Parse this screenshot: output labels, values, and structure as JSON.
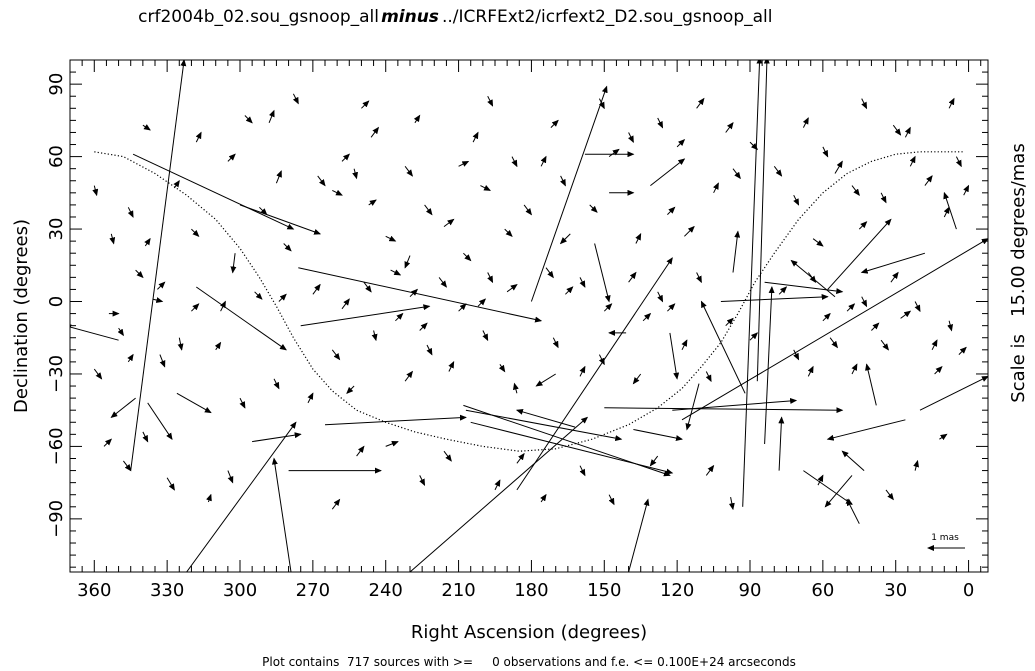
{
  "chart_data": {
    "type": "scatter",
    "title": {
      "left": "crf2004b_02.sou_gsnoop_all",
      "middle": "minus",
      "right": "../ICRFExt2/icrfext2_D2.sou_gsnoop_all"
    },
    "xlabel": "Right Ascension (degrees)",
    "ylabel": "Declination (degrees)",
    "right_label": "Scale is   15.00 degrees/mas",
    "footer": "Plot contains  717 sources with >=     0 observations and f.e. <= 0.100E+24 arcseconds",
    "scale_bar_label": "1 mas",
    "xlim": [
      370,
      -8
    ],
    "ylim": [
      -112,
      100
    ],
    "x_ticks": [
      360,
      330,
      300,
      270,
      240,
      210,
      180,
      150,
      120,
      90,
      60,
      30,
      0
    ],
    "y_ticks": [
      90,
      60,
      30,
      0,
      -30,
      -60,
      -90
    ],
    "x_tick_labels": [
      "360",
      "330",
      "300",
      "270",
      "240",
      "210",
      "180",
      "150",
      "120",
      "90",
      "60",
      "30",
      "0"
    ],
    "y_tick_labels": [
      "90",
      "60",
      "30",
      "0",
      "−30",
      "−60",
      "−90"
    ],
    "galactic_plane": {
      "ra": [
        360,
        348,
        335,
        322,
        310,
        300,
        292,
        285,
        278,
        270,
        262,
        252,
        240,
        228,
        215,
        200,
        185,
        170,
        155,
        140,
        128,
        118,
        110,
        102,
        95,
        88,
        80,
        70,
        60,
        50,
        40,
        30,
        20,
        10,
        2
      ],
      "dec": [
        62,
        60,
        53,
        44,
        34,
        22,
        10,
        -2,
        -15,
        -28,
        -37,
        -45,
        -50,
        -54,
        -57,
        -60,
        -62,
        -61,
        -57,
        -51,
        -44,
        -36,
        -27,
        -17,
        -5,
        8,
        20,
        34,
        45,
        53,
        58,
        61,
        62,
        62,
        62
      ]
    },
    "long_arrows": [
      [
        345,
        -70,
        323,
        100
      ],
      [
        322,
        -112,
        277,
        -50
      ],
      [
        338,
        -42,
        328,
        -57
      ],
      [
        343,
        -40,
        353,
        -48
      ],
      [
        350,
        -16,
        372,
        -10
      ],
      [
        318,
        6,
        281,
        -20
      ],
      [
        326,
        -38,
        312,
        -46
      ],
      [
        344,
        61,
        278,
        30
      ],
      [
        300,
        40,
        267,
        28
      ],
      [
        302,
        20,
        303,
        12
      ],
      [
        276,
        14,
        176,
        -8
      ],
      [
        275,
        -10,
        222,
        -2
      ],
      [
        279,
        -112,
        286,
        -65
      ],
      [
        295,
        -58,
        275,
        -55
      ],
      [
        280,
        -70,
        242,
        -70
      ],
      [
        265,
        -51,
        207,
        -48
      ],
      [
        230,
        -112,
        157,
        -48
      ],
      [
        208,
        -43,
        123,
        -72
      ],
      [
        207,
        -45,
        143,
        -57
      ],
      [
        205,
        -50,
        122,
        -71
      ],
      [
        180,
        0,
        149,
        89
      ],
      [
        186,
        -78,
        122,
        18
      ],
      [
        162,
        -52,
        186,
        -45
      ],
      [
        140,
        -112,
        132,
        -82
      ],
      [
        141,
        -13,
        148,
        -13
      ],
      [
        123,
        -13,
        120,
        -32
      ],
      [
        158,
        61,
        138,
        61
      ],
      [
        148,
        45,
        138,
        45
      ],
      [
        131,
        48,
        117,
        59
      ],
      [
        97,
        12,
        95,
        29
      ],
      [
        93,
        -85,
        86,
        101
      ],
      [
        87,
        -33,
        83,
        101
      ],
      [
        84,
        -59,
        81,
        6
      ],
      [
        78,
        -70,
        77,
        -48
      ],
      [
        102,
        0,
        58,
        2
      ],
      [
        84,
        8,
        52,
        4
      ],
      [
        55,
        2,
        73,
        17
      ],
      [
        58,
        5,
        32,
        34
      ],
      [
        118,
        -49,
        -8,
        26
      ],
      [
        122,
        -45,
        71,
        -41
      ],
      [
        150,
        -44,
        52,
        -45
      ],
      [
        138,
        -53,
        118,
        -57
      ],
      [
        111,
        -34,
        116,
        -53
      ],
      [
        92,
        -38,
        110,
        0
      ],
      [
        68,
        -70,
        48,
        -84
      ],
      [
        43,
        -70,
        52,
        -62
      ],
      [
        38,
        -43,
        42,
        -26
      ],
      [
        26,
        -49,
        58,
        -57
      ],
      [
        45,
        -92,
        50,
        -82
      ],
      [
        20,
        -45,
        -8,
        -31
      ],
      [
        18,
        20,
        44,
        12
      ],
      [
        5,
        30,
        10,
        45
      ],
      [
        48,
        -72,
        59,
        -85
      ],
      [
        170,
        -30,
        178,
        -35
      ],
      [
        154,
        24,
        148,
        0
      ]
    ],
    "short_arrows": [
      [
        360,
        48,
        359,
        44
      ],
      [
        353,
        28,
        352,
        24
      ],
      [
        346,
        39,
        344,
        35
      ],
      [
        343,
        13,
        340,
        10
      ],
      [
        339,
        23,
        337,
        26
      ],
      [
        334,
        5,
        331,
        8
      ],
      [
        327,
        47,
        325,
        50
      ],
      [
        354,
        -5,
        350,
        -5
      ],
      [
        350,
        -11,
        348,
        -14
      ],
      [
        346,
        -25,
        344,
        -22
      ],
      [
        336,
        1,
        332,
        0
      ],
      [
        333,
        -22,
        331,
        -27
      ],
      [
        325,
        -15,
        324,
        -20
      ],
      [
        320,
        30,
        317,
        27
      ],
      [
        310,
        -20,
        308,
        -17
      ],
      [
        305,
        -70,
        303,
        -75
      ],
      [
        330,
        -73,
        327,
        -78
      ],
      [
        313,
        -83,
        312,
        -80
      ],
      [
        285,
        49,
        283,
        54
      ],
      [
        288,
        74,
        286,
        79
      ],
      [
        268,
        52,
        265,
        48
      ],
      [
        262,
        46,
        258,
        44
      ],
      [
        253,
        55,
        252,
        51
      ],
      [
        247,
        40,
        244,
        42
      ],
      [
        240,
        27,
        236,
        25
      ],
      [
        230,
        19,
        232,
        14
      ],
      [
        224,
        40,
        221,
        36
      ],
      [
        216,
        31,
        212,
        34
      ],
      [
        210,
        56,
        206,
        58
      ],
      [
        201,
        48,
        197,
        46
      ],
      [
        191,
        30,
        188,
        27
      ],
      [
        183,
        40,
        180,
        36
      ],
      [
        176,
        56,
        174,
        60
      ],
      [
        164,
        28,
        168,
        24
      ],
      [
        156,
        40,
        153,
        37
      ],
      [
        148,
        60,
        144,
        63
      ],
      [
        137,
        24,
        135,
        28
      ],
      [
        124,
        36,
        121,
        39
      ],
      [
        117,
        27,
        113,
        31
      ],
      [
        105,
        45,
        103,
        49
      ],
      [
        97,
        55,
        94,
        51
      ],
      [
        72,
        44,
        70,
        40
      ],
      [
        64,
        26,
        60,
        23
      ],
      [
        55,
        53,
        52,
        58
      ],
      [
        45,
        30,
        42,
        33
      ],
      [
        36,
        45,
        34,
        41
      ],
      [
        31,
        73,
        28,
        69
      ],
      [
        18,
        48,
        15,
        52
      ],
      [
        10,
        35,
        8,
        39
      ],
      [
        5,
        60,
        3,
        56
      ],
      [
        262,
        -20,
        259,
        -24
      ],
      [
        253,
        -35,
        256,
        -38
      ],
      [
        245,
        -12,
        244,
        -16
      ],
      [
        232,
        -33,
        229,
        -29
      ],
      [
        223,
        -18,
        221,
        -22
      ],
      [
        214,
        -29,
        212,
        -25
      ],
      [
        200,
        -12,
        198,
        -16
      ],
      [
        193,
        -26,
        191,
        -29
      ],
      [
        186,
        -38,
        187,
        -34
      ],
      [
        171,
        -15,
        169,
        -19
      ],
      [
        160,
        -31,
        158,
        -27
      ],
      [
        152,
        -22,
        150,
        -26
      ],
      [
        135,
        -30,
        138,
        -34
      ],
      [
        118,
        -20,
        116,
        -16
      ],
      [
        108,
        -29,
        106,
        -33
      ],
      [
        72,
        -20,
        70,
        -24
      ],
      [
        66,
        -31,
        64,
        -27
      ],
      [
        57,
        -15,
        54,
        -19
      ],
      [
        48,
        -30,
        46,
        -26
      ],
      [
        36,
        -16,
        33,
        -20
      ],
      [
        28,
        -7,
        24,
        -4
      ],
      [
        15,
        -20,
        13,
        -16
      ],
      [
        8,
        -8,
        7,
        -12
      ],
      [
        262,
        -86,
        259,
        -82
      ],
      [
        252,
        -64,
        249,
        -60
      ],
      [
        240,
        -60,
        235,
        -58
      ],
      [
        226,
        -72,
        224,
        -76
      ],
      [
        216,
        -62,
        213,
        -66
      ],
      [
        195,
        -78,
        193,
        -74
      ],
      [
        186,
        -67,
        183,
        -63
      ],
      [
        176,
        -83,
        174,
        -80
      ],
      [
        160,
        -68,
        158,
        -72
      ],
      [
        148,
        -80,
        146,
        -84
      ],
      [
        128,
        -64,
        131,
        -68
      ],
      [
        108,
        -72,
        105,
        -68
      ],
      [
        98,
        -81,
        97,
        -86
      ],
      [
        62,
        -76,
        60,
        -72
      ],
      [
        34,
        -78,
        31,
        -82
      ],
      [
        22,
        -70,
        21,
        -66
      ],
      [
        12,
        -57,
        9,
        -55
      ],
      [
        298,
        77,
        295,
        74
      ],
      [
        278,
        86,
        276,
        82
      ],
      [
        250,
        80,
        247,
        83
      ],
      [
        228,
        74,
        226,
        77
      ],
      [
        198,
        85,
        196,
        81
      ],
      [
        172,
        72,
        169,
        75
      ],
      [
        152,
        84,
        150,
        80
      ],
      [
        128,
        76,
        126,
        72
      ],
      [
        112,
        80,
        109,
        84
      ],
      [
        90,
        66,
        87,
        63
      ],
      [
        68,
        72,
        66,
        76
      ],
      [
        44,
        84,
        42,
        80
      ],
      [
        26,
        68,
        24,
        72
      ],
      [
        8,
        80,
        6,
        84
      ],
      [
        340,
        73,
        337,
        71
      ],
      [
        318,
        66,
        316,
        70
      ],
      [
        305,
        58,
        302,
        61
      ],
      [
        292,
        39,
        289,
        36
      ],
      [
        282,
        24,
        279,
        21
      ],
      [
        270,
        3,
        267,
        7
      ],
      [
        258,
        -3,
        255,
        1
      ],
      [
        249,
        8,
        246,
        4
      ],
      [
        238,
        13,
        234,
        11
      ],
      [
        230,
        2,
        227,
        5
      ],
      [
        218,
        10,
        215,
        6
      ],
      [
        208,
        20,
        205,
        17
      ],
      [
        198,
        12,
        196,
        8
      ],
      [
        190,
        4,
        186,
        7
      ],
      [
        174,
        14,
        171,
        10
      ],
      [
        166,
        3,
        163,
        6
      ],
      [
        160,
        10,
        158,
        6
      ],
      [
        140,
        8,
        137,
        12
      ],
      [
        128,
        4,
        126,
        0
      ],
      [
        112,
        12,
        110,
        8
      ],
      [
        78,
        3,
        75,
        6
      ],
      [
        66,
        12,
        63,
        8
      ],
      [
        44,
        2,
        42,
        -2
      ],
      [
        32,
        8,
        29,
        12
      ],
      [
        22,
        0,
        20,
        -4
      ],
      [
        360,
        -28,
        357,
        -32
      ],
      [
        356,
        -60,
        353,
        -57
      ],
      [
        348,
        -66,
        345,
        -70
      ],
      [
        340,
        -54,
        338,
        -58
      ],
      [
        300,
        -40,
        298,
        -44
      ],
      [
        286,
        -32,
        284,
        -36
      ],
      [
        272,
        -42,
        270,
        -38
      ],
      [
        258,
        58,
        255,
        61
      ],
      [
        246,
        68,
        243,
        72
      ],
      [
        232,
        56,
        229,
        52
      ],
      [
        204,
        66,
        202,
        70
      ],
      [
        188,
        60,
        186,
        56
      ],
      [
        168,
        52,
        166,
        48
      ],
      [
        140,
        70,
        138,
        66
      ],
      [
        120,
        64,
        117,
        67
      ],
      [
        100,
        70,
        97,
        74
      ],
      [
        80,
        56,
        77,
        52
      ],
      [
        60,
        64,
        58,
        60
      ],
      [
        48,
        48,
        45,
        44
      ],
      [
        24,
        56,
        22,
        60
      ],
      [
        2,
        44,
        0,
        48
      ],
      [
        320,
        -4,
        317,
        -1
      ],
      [
        308,
        -4,
        306,
        0
      ],
      [
        294,
        4,
        291,
        1
      ],
      [
        284,
        0,
        281,
        3
      ],
      [
        236,
        -8,
        233,
        -5
      ],
      [
        226,
        -12,
        223,
        -9
      ],
      [
        210,
        -4,
        207,
        -1
      ],
      [
        202,
        -2,
        199,
        1
      ],
      [
        150,
        -4,
        147,
        -1
      ],
      [
        134,
        -8,
        131,
        -5
      ],
      [
        124,
        -4,
        121,
        -1
      ],
      [
        100,
        -10,
        97,
        -7
      ],
      [
        90,
        -16,
        87,
        -13
      ],
      [
        60,
        -8,
        57,
        -5
      ],
      [
        50,
        -4,
        47,
        -1
      ],
      [
        40,
        -12,
        37,
        -9
      ],
      [
        14,
        -30,
        11,
        -27
      ],
      [
        4,
        -22,
        1,
        -19
      ]
    ]
  }
}
